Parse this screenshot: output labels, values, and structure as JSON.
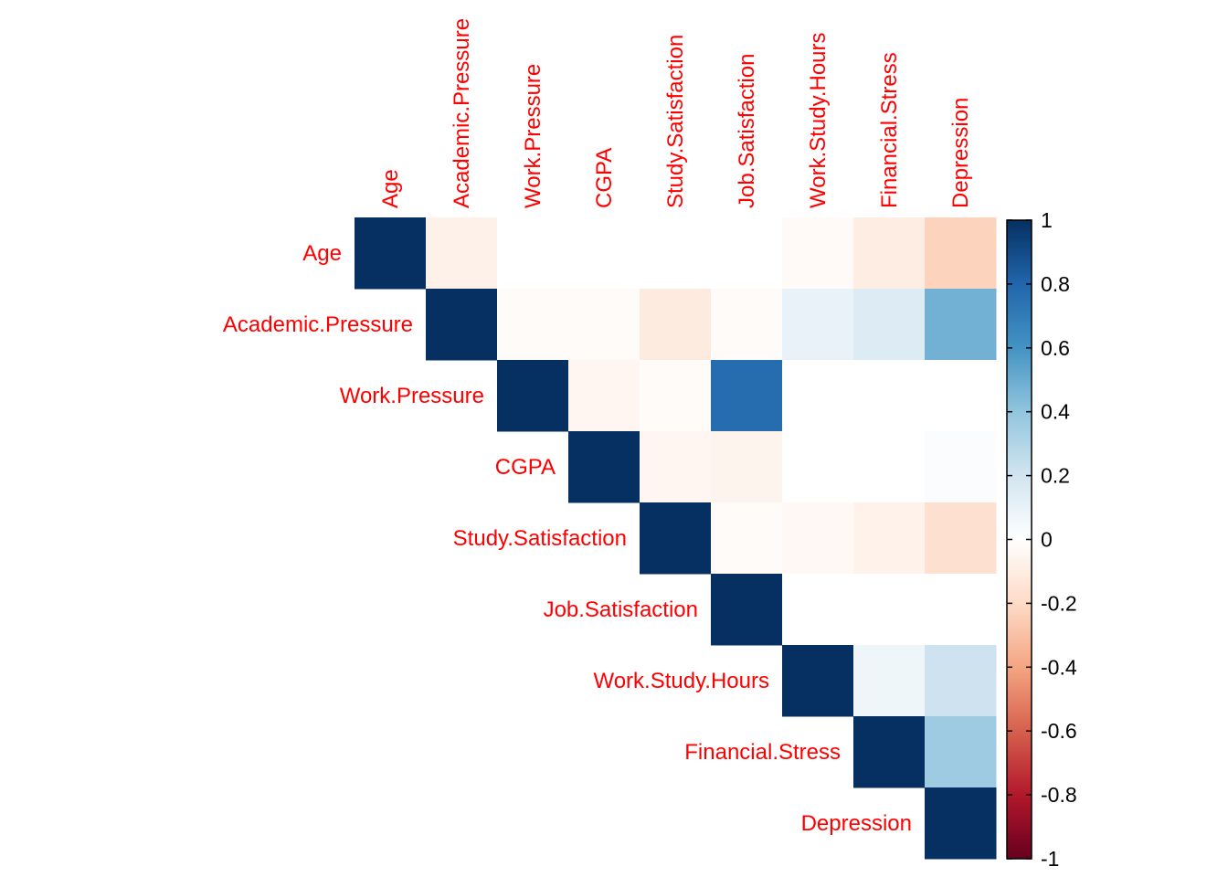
{
  "chart_data": {
    "type": "heatmap",
    "subtype": "correlation-matrix-upper",
    "variables": [
      "Age",
      "Academic.Pressure",
      "Work.Pressure",
      "CGPA",
      "Study.Satisfaction",
      "Job.Satisfaction",
      "Work.Study.Hours",
      "Financial.Stress",
      "Depression"
    ],
    "matrix": [
      [
        1.0,
        -0.08,
        0.0,
        0.0,
        0.0,
        0.0,
        -0.03,
        -0.1,
        -0.23
      ],
      [
        null,
        1.0,
        -0.02,
        -0.02,
        -0.11,
        -0.02,
        0.1,
        0.15,
        0.48
      ],
      [
        null,
        null,
        1.0,
        -0.05,
        -0.02,
        0.77,
        0.0,
        0.0,
        0.0
      ],
      [
        null,
        null,
        null,
        1.0,
        -0.05,
        -0.06,
        0.0,
        0.0,
        0.02
      ],
      [
        null,
        null,
        null,
        null,
        1.0,
        -0.02,
        -0.04,
        -0.07,
        -0.17
      ],
      [
        null,
        null,
        null,
        null,
        null,
        1.0,
        0.0,
        0.0,
        0.0
      ],
      [
        null,
        null,
        null,
        null,
        null,
        null,
        1.0,
        0.07,
        0.21
      ],
      [
        null,
        null,
        null,
        null,
        null,
        null,
        null,
        1.0,
        0.36
      ],
      [
        null,
        null,
        null,
        null,
        null,
        null,
        null,
        null,
        1.0
      ]
    ],
    "color_scale": {
      "range": [
        -1,
        1
      ],
      "ticks": [
        "1",
        "0.8",
        "0.6",
        "0.4",
        "0.2",
        "0",
        "-0.2",
        "-0.4",
        "-0.6",
        "-0.8",
        "-1"
      ],
      "colors": [
        "#67001F",
        "#B2182B",
        "#D6604D",
        "#F4A582",
        "#FDDBC7",
        "#FFFFFF",
        "#D1E5F0",
        "#92C5DE",
        "#4393C3",
        "#2166AC",
        "#053061"
      ]
    },
    "label_color": "#FF0000",
    "legend_placement": "right"
  }
}
